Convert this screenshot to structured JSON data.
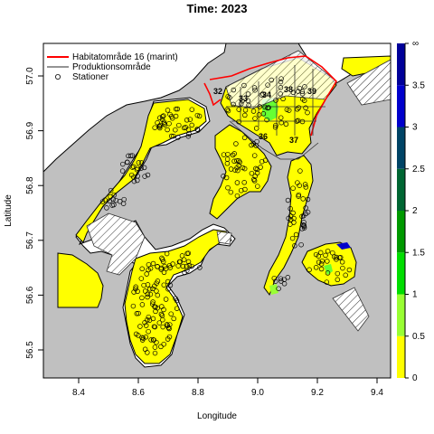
{
  "title": "Time: 2023",
  "xlabel": "Longitude",
  "ylabel": "Latitude",
  "x_ticks": [
    "8.4",
    "8.6",
    "8.8",
    "9.0",
    "9.2",
    "9.4"
  ],
  "y_ticks": [
    "56.5",
    "56.6",
    "56.7",
    "56.8",
    "56.9",
    "57.0"
  ],
  "legend": {
    "placement": "top-left",
    "items": [
      {
        "label": "Habitatområde 16 (marint)",
        "symbol": "red-line"
      },
      {
        "label": "Produktionsområde",
        "symbol": "gray-line"
      },
      {
        "label": "Stationer",
        "symbol": "circle"
      }
    ]
  },
  "colorbar": {
    "labels": [
      "0",
      "0.5",
      "1",
      "1.5",
      "2",
      "2.5",
      "3",
      "3.5",
      "∞"
    ],
    "colors": [
      "#ffff00",
      "#99ff33",
      "#00dd00",
      "#009900",
      "#006633",
      "#004466",
      "#0000cc",
      "#000099"
    ]
  },
  "area_numbers": [
    "32",
    "33",
    "34",
    "38",
    "39",
    "36",
    "37"
  ],
  "colors": {
    "land": "#c0c0c0",
    "water": "#ffffff",
    "fill": "#ffff00",
    "habitat": "#ff0000",
    "production": "#555555"
  }
}
